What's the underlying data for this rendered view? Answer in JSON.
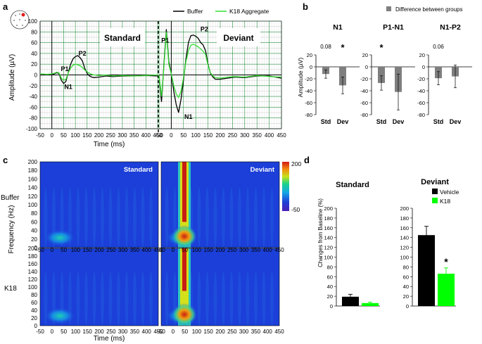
{
  "panels": {
    "a": "a",
    "b": "b",
    "c": "c",
    "d": "d"
  },
  "colors": {
    "buffer": "#000000",
    "k18": "#33dd33",
    "grid": "#1f8a3a",
    "bar_gray": "#7f7f7f",
    "bar_black": "#000000",
    "bar_green": "#00ff00",
    "electrode_marker": "#e31b1b"
  },
  "chart_data": [
    {
      "id": "a",
      "type": "line",
      "legend": [
        "Buffer",
        "K18 Aggregate"
      ],
      "legend_placement": "top-right",
      "ylabel": "Amplitude (µV)",
      "xlabel": "Time (ms)",
      "ylim": [
        -100,
        100
      ],
      "yticks": [
        "100",
        "80",
        "60",
        "40",
        "20",
        "0",
        "-20",
        "-40",
        "-60",
        "-80",
        "-100"
      ],
      "xticks": [
        "-50",
        "0",
        "50",
        "100",
        "150",
        "200",
        "250",
        "300",
        "350",
        "400",
        "450"
      ],
      "grid": true,
      "subplots": [
        {
          "title": "Standard",
          "xlim": [
            -50,
            450
          ],
          "annotations": [
            {
              "text": "P1",
              "x": 55,
              "y": 7
            },
            {
              "text": "P2",
              "x": 130,
              "y": 36
            },
            {
              "text": "N1",
              "x": 70,
              "y": -26
            }
          ],
          "series": [
            {
              "name": "Buffer",
              "x": [
                -50,
                -20,
                0,
                10,
                20,
                30,
                40,
                50,
                60,
                70,
                80,
                90,
                100,
                110,
                120,
                130,
                140,
                150,
                160,
                170,
                180,
                200,
                230,
                260,
                300,
                350,
                400,
                450
              ],
              "y": [
                0,
                0,
                0,
                2,
                4,
                3,
                -10,
                -16,
                -12,
                5,
                20,
                30,
                34,
                36,
                32,
                26,
                12,
                3,
                -2,
                -4,
                -5,
                -4,
                -2,
                -3,
                -2,
                -2,
                -1,
                -2
              ]
            },
            {
              "name": "K18 Aggregate",
              "x": [
                -50,
                -20,
                0,
                10,
                20,
                30,
                40,
                50,
                60,
                70,
                80,
                90,
                100,
                110,
                120,
                130,
                140,
                150,
                160,
                170,
                180,
                200,
                230,
                260,
                300,
                350,
                400,
                450
              ],
              "y": [
                2,
                1,
                2,
                3,
                5,
                4,
                -6,
                -10,
                -8,
                4,
                13,
                18,
                20,
                19,
                17,
                14,
                9,
                6,
                3,
                1,
                0,
                -1,
                0,
                -2,
                -1,
                -2,
                -1,
                0
              ]
            }
          ]
        },
        {
          "title": "Deviant",
          "xlim": [
            -50,
            450
          ],
          "annotations": [
            {
              "text": "P1",
              "x": -25,
              "y": 60
            },
            {
              "text": "P2",
              "x": 135,
              "y": 81
            },
            {
              "text": "N1",
              "x": 70,
              "y": -82
            }
          ],
          "series": [
            {
              "name": "Buffer",
              "x": [
                -50,
                -40,
                -30,
                -20,
                -10,
                0,
                10,
                20,
                30,
                40,
                50,
                60,
                70,
                80,
                90,
                100,
                110,
                120,
                130,
                140,
                150,
                160,
                170,
                180,
                200,
                230,
                260,
                300,
                350,
                400,
                450
              ],
              "y": [
                0,
                -50,
                20,
                85,
                25,
                3,
                -30,
                -55,
                -70,
                -45,
                -10,
                30,
                60,
                73,
                74,
                72,
                68,
                60,
                56,
                45,
                20,
                3,
                -4,
                -8,
                -8,
                -6,
                -4,
                -5,
                -2,
                -2,
                -6
              ]
            },
            {
              "name": "K18 Aggregate",
              "x": [
                -50,
                -40,
                -30,
                -20,
                -10,
                0,
                10,
                20,
                30,
                40,
                50,
                60,
                70,
                80,
                90,
                100,
                110,
                120,
                130,
                140,
                150,
                160,
                170,
                180,
                200,
                230,
                260,
                300,
                350,
                400,
                450
              ],
              "y": [
                0,
                -40,
                15,
                80,
                20,
                2,
                -20,
                -35,
                -42,
                -30,
                -5,
                25,
                45,
                55,
                57,
                55,
                52,
                48,
                44,
                38,
                18,
                4,
                -2,
                -5,
                -6,
                -4,
                -3,
                -4,
                -1,
                -3,
                -4
              ]
            }
          ]
        }
      ]
    },
    {
      "id": "b",
      "type": "bar",
      "legend": [
        "Difference between groups"
      ],
      "ylabel": "Amplitude (µV)",
      "ylim": [
        -80,
        20
      ],
      "yticks": [
        "20",
        "0",
        "-20",
        "-40",
        "-60",
        "-80"
      ],
      "categories": [
        "Std",
        "Dev"
      ],
      "subplots": [
        {
          "title": "N1",
          "values": [
            -12,
            -31
          ],
          "errors": [
            7,
            14
          ],
          "annotations": [
            {
              "text": "0.08",
              "over": "Std"
            },
            {
              "text": "*",
              "over": "Dev"
            }
          ]
        },
        {
          "title": "P1-N1",
          "values": [
            -27,
            -42
          ],
          "errors": [
            12,
            30
          ],
          "annotations": [
            {
              "text": "*",
              "over": "Std"
            }
          ]
        },
        {
          "title": "N1-P2",
          "values": [
            -19,
            -16
          ],
          "errors": [
            11,
            19
          ],
          "annotations": [
            {
              "text": "0.06",
              "over": "Std"
            }
          ]
        }
      ]
    },
    {
      "id": "c",
      "type": "heatmap",
      "ylabel": "Frequency (Hz)",
      "xlabel": "Time (ms)",
      "yticks": [
        "200",
        "180",
        "160",
        "140",
        "120",
        "100",
        "80",
        "60",
        "40",
        "20",
        "0"
      ],
      "xticks": [
        "-50",
        "0",
        "50",
        "100",
        "150",
        "200",
        "250",
        "300",
        "350",
        "400",
        "450"
      ],
      "colorbar_ticks": [
        "200",
        "-50"
      ],
      "rows": [
        "Buffer",
        "K18"
      ],
      "columns": [
        "Standard",
        "Deviant"
      ]
    },
    {
      "id": "d",
      "type": "bar",
      "legend": [
        "Vehicle",
        "K18"
      ],
      "ylabel": "Changes from Baseline (%)",
      "ylim": [
        0,
        200
      ],
      "yticks": [
        "200",
        "180",
        "160",
        "140",
        "120",
        "100",
        "80",
        "60",
        "40",
        "20",
        "0"
      ],
      "subplots": [
        {
          "title": "Standard",
          "values": [
            19,
            6
          ],
          "errors": [
            5,
            2
          ],
          "annotations": []
        },
        {
          "title": "Deviant",
          "values": [
            145,
            66
          ],
          "errors": [
            18,
            12
          ],
          "annotations": [
            {
              "text": "*",
              "over": "K18"
            }
          ]
        }
      ]
    }
  ]
}
